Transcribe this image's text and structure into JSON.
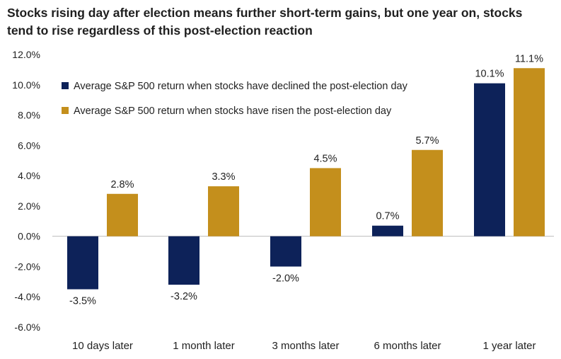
{
  "chart_data": {
    "type": "bar",
    "title": "Stocks rising day after election means further short-term gains, but one year on, stocks tend to rise regardless of this post-election reaction",
    "xlabel": "",
    "ylabel": "",
    "categories": [
      "10 days later",
      "1 month later",
      "3 months later",
      "6 months later",
      "1 year later"
    ],
    "series": [
      {
        "name": "Average S&P 500 return when stocks have declined the post-election day",
        "color": "#0d2259",
        "values": [
          -3.5,
          -3.2,
          -2.0,
          0.7,
          10.1
        ],
        "labels": [
          "-3.5%",
          "-3.2%",
          "-2.0%",
          "0.7%",
          "10.1%"
        ]
      },
      {
        "name": "Average S&P 500 return when stocks have risen the post-election day",
        "color": "#c48f1c",
        "values": [
          2.8,
          3.3,
          4.5,
          5.7,
          11.1
        ],
        "labels": [
          "2.8%",
          "3.3%",
          "4.5%",
          "5.7%",
          "11.1%"
        ]
      }
    ],
    "ylim": [
      -6,
      12
    ],
    "yticks": [
      -6,
      -4,
      -2,
      0,
      2,
      4,
      6,
      8,
      10,
      12
    ],
    "ytick_labels": [
      "-6.0%",
      "-4.0%",
      "-2.0%",
      "0.0%",
      "2.0%",
      "4.0%",
      "6.0%",
      "8.0%",
      "10.0%",
      "12.0%"
    ],
    "grid": false,
    "legend_position": "top-left"
  }
}
